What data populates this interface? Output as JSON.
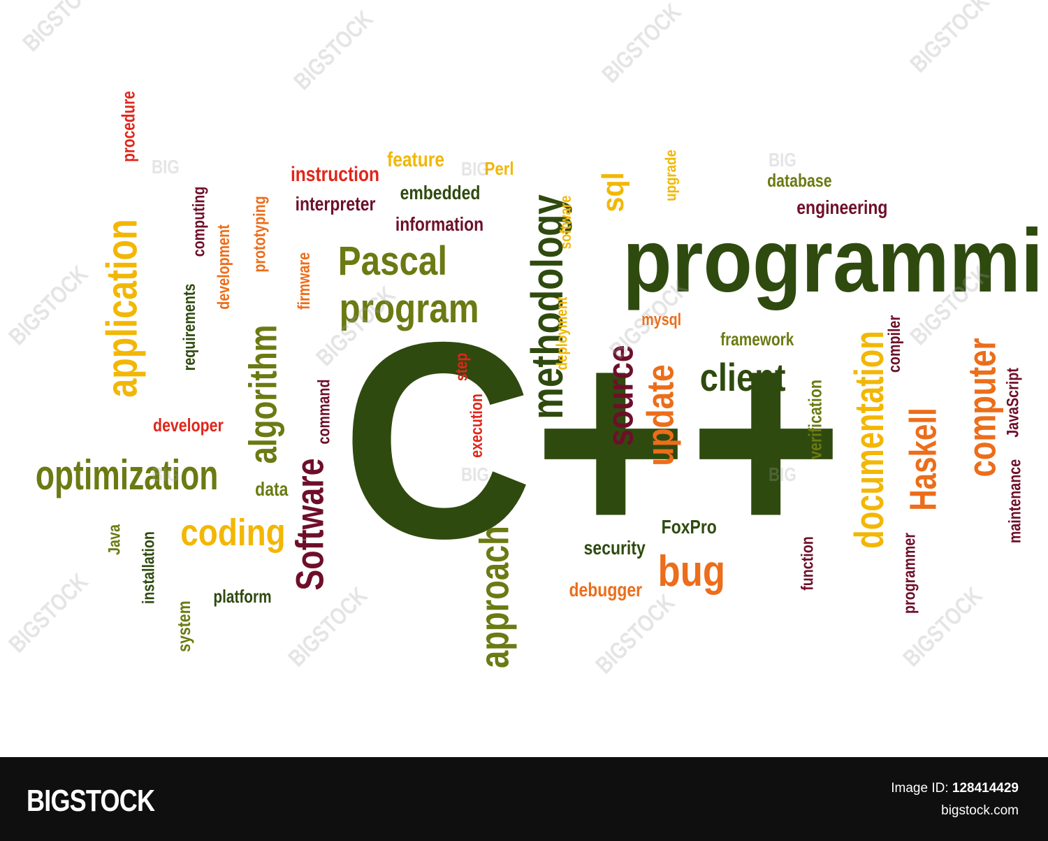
{
  "colors": {
    "dark_green": "#2f4a0f",
    "olive": "#6b7a12",
    "dark_red": "#6e0f2a",
    "red": "#e0261b",
    "orange": "#ec6d1a",
    "yellow": "#f2b705",
    "footer_bg": "#0f0f0f"
  },
  "words": [
    {
      "text": "C++",
      "color": "#2f4a0f"
    },
    {
      "text": "programming",
      "color": "#2f4a0f"
    },
    {
      "text": "Pascal",
      "color": "#6b7a12"
    },
    {
      "text": "program",
      "color": "#6b7a12"
    },
    {
      "text": "methodology",
      "color": "#2f4a0f"
    },
    {
      "text": "application",
      "color": "#f2b705"
    },
    {
      "text": "algorithm",
      "color": "#6b7a12"
    },
    {
      "text": "optimization",
      "color": "#6b7a12"
    },
    {
      "text": "Software",
      "color": "#6e0f2a"
    },
    {
      "text": "coding",
      "color": "#f2b705"
    },
    {
      "text": "approach",
      "color": "#6b7a12"
    },
    {
      "text": "documentation",
      "color": "#f2b705"
    },
    {
      "text": "Haskell",
      "color": "#ec6d1a"
    },
    {
      "text": "computer",
      "color": "#ec6d1a"
    },
    {
      "text": "client",
      "color": "#2f4a0f"
    },
    {
      "text": "source",
      "color": "#6e0f2a"
    },
    {
      "text": "update",
      "color": "#ec6d1a"
    },
    {
      "text": "bug",
      "color": "#ec6d1a"
    },
    {
      "text": "sql",
      "color": "#f2b705"
    },
    {
      "text": "instruction",
      "color": "#e0261b"
    },
    {
      "text": "interpreter",
      "color": "#6e0f2a"
    },
    {
      "text": "information",
      "color": "#6e0f2a"
    },
    {
      "text": "embedded",
      "color": "#2f4a0f"
    },
    {
      "text": "feature",
      "color": "#f2b705"
    },
    {
      "text": "Perl",
      "color": "#f2b705"
    },
    {
      "text": "database",
      "color": "#6b7a12"
    },
    {
      "text": "engineering",
      "color": "#6e0f2a"
    },
    {
      "text": "upgrade",
      "color": "#f2b705"
    },
    {
      "text": "software",
      "color": "#f2b705"
    },
    {
      "text": "deployment",
      "color": "#f2b705"
    },
    {
      "text": "mysql",
      "color": "#ec6d1a"
    },
    {
      "text": "framework",
      "color": "#6b7a12"
    },
    {
      "text": "compiler",
      "color": "#6e0f2a"
    },
    {
      "text": "JavaScript",
      "color": "#6e0f2a"
    },
    {
      "text": "maintenance",
      "color": "#6e0f2a"
    },
    {
      "text": "programmer",
      "color": "#6e0f2a"
    },
    {
      "text": "function",
      "color": "#6e0f2a"
    },
    {
      "text": "verification",
      "color": "#6b7a12"
    },
    {
      "text": "step",
      "color": "#e0261b"
    },
    {
      "text": "execution",
      "color": "#e0261b"
    },
    {
      "text": "command",
      "color": "#6e0f2a"
    },
    {
      "text": "firmware",
      "color": "#ec6d1a"
    },
    {
      "text": "prototyping",
      "color": "#ec6d1a"
    },
    {
      "text": "development",
      "color": "#ec6d1a"
    },
    {
      "text": "computing",
      "color": "#6e0f2a"
    },
    {
      "text": "requirements",
      "color": "#2f4a0f"
    },
    {
      "text": "procedure",
      "color": "#e0261b"
    },
    {
      "text": "developer",
      "color": "#e0261b"
    },
    {
      "text": "data",
      "color": "#6b7a12"
    },
    {
      "text": "Java",
      "color": "#6b7a12"
    },
    {
      "text": "installation",
      "color": "#2f4a0f"
    },
    {
      "text": "system",
      "color": "#6b7a12"
    },
    {
      "text": "platform",
      "color": "#2f4a0f"
    },
    {
      "text": "security",
      "color": "#2f4a0f"
    },
    {
      "text": "FoxPro",
      "color": "#2f4a0f"
    },
    {
      "text": "debugger",
      "color": "#ec6d1a"
    }
  ],
  "watermarks": [
    "BIGSTOCK",
    "BIG"
  ],
  "footer": {
    "brand": "BIGSTOCK",
    "image_id_label": "Image ID:",
    "image_id": "128414429",
    "site": "bigstock.com"
  }
}
